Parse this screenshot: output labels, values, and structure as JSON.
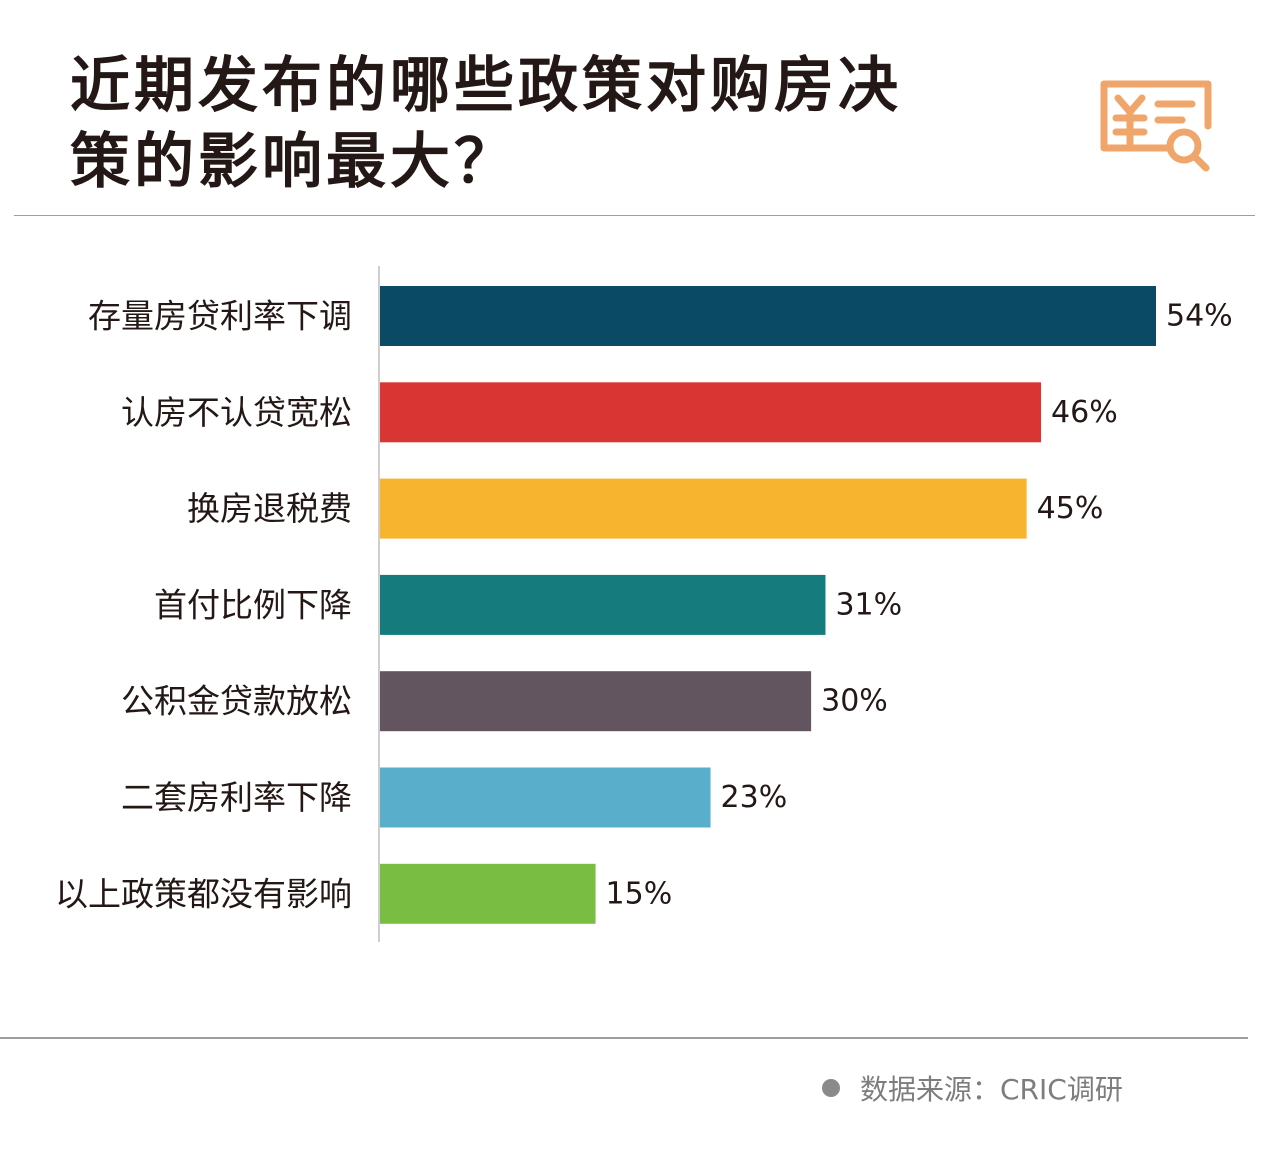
{
  "title": {
    "line1": "近期发布的哪些政策对购房决",
    "line2": "策的影响最大？"
  },
  "logo": {
    "icon": "yuan-receipt-search-icon",
    "color": "#f0a56a"
  },
  "source": "数据来源：CRIC调研",
  "chart_data": {
    "type": "bar",
    "orientation": "horizontal",
    "categories": [
      "存量房贷利率下调",
      "认房不认贷宽松",
      "换房退税费",
      "首付比例下降",
      "公积金贷款放松",
      "二套房利率下降",
      "以上政策都没有影响"
    ],
    "values": [
      54,
      46,
      45,
      31,
      30,
      23,
      15
    ],
    "value_labels": [
      "54%",
      "46%",
      "45%",
      "31%",
      "30%",
      "23%",
      "15%"
    ],
    "colors": [
      "#0b4a64",
      "#d93532",
      "#f7b42e",
      "#157b7c",
      "#62555f",
      "#59aecb",
      "#79bd42"
    ],
    "unit": "%",
    "xlim": [
      0,
      54
    ],
    "grid": false,
    "legend": "none"
  }
}
